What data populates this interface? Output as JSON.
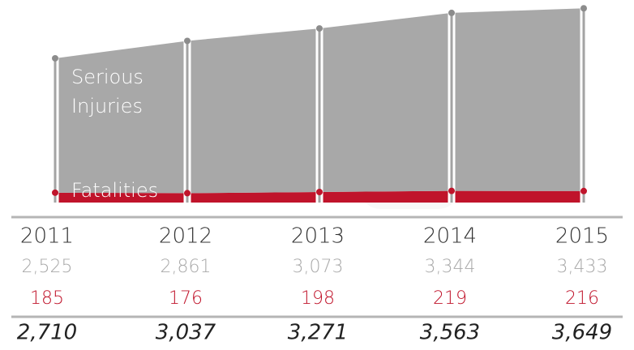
{
  "chart_data": {
    "type": "stacked-area",
    "categories": [
      "2011",
      "2012",
      "2013",
      "2014",
      "2015"
    ],
    "series": [
      {
        "name": "Serious Injuries",
        "color": "#a3a3a3",
        "text_color": "#a9a9a9",
        "values": [
          2525,
          2861,
          3073,
          3344,
          3433
        ],
        "value_labels": [
          "2,525",
          "2,861",
          "3,073",
          "3,344",
          "3,433"
        ]
      },
      {
        "name": "Fatalities",
        "color": "#c0142b",
        "text_color": "#c0142b",
        "values": [
          185,
          176,
          198,
          219,
          216
        ]
      }
    ],
    "totals": {
      "values": [
        2710,
        3037,
        3271,
        3563,
        3649
      ],
      "value_labels": [
        "2,710",
        "3,037",
        "3,271",
        "3,563",
        "3,649"
      ]
    }
  }
}
